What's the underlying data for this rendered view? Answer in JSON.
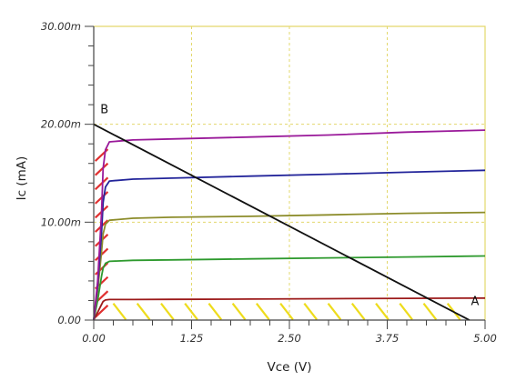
{
  "chart_data": {
    "type": "line",
    "title": "",
    "xlabel": "Vce (V)",
    "ylabel": "Ic (mA)",
    "xlim": [
      0,
      5
    ],
    "ylim": [
      0,
      30
    ],
    "x_ticks": [
      "0.00",
      "1.25",
      "2.50",
      "3.75",
      "5.00"
    ],
    "y_ticks": [
      "0.00",
      "10.00m",
      "20.00m",
      "30.00m"
    ],
    "grid": true,
    "colors": {
      "frame": "#e3d86c",
      "grid": "#e3d86c",
      "load_line": "#111111",
      "saturation_hatch": "#e03030",
      "cutoff_hatch": "#eedc1c",
      "axis": "#444444"
    },
    "series": [
      {
        "color": "#9c1a1a",
        "x": [
          0,
          0.05,
          0.1,
          0.12,
          0.15,
          0.2,
          0.5,
          1,
          2,
          3,
          4,
          5
        ],
        "y": [
          0,
          0.8,
          1.6,
          1.9,
          2.05,
          2.1,
          2.1,
          2.12,
          2.15,
          2.18,
          2.22,
          2.25
        ]
      },
      {
        "color": "#2e9a2e",
        "x": [
          0,
          0.05,
          0.1,
          0.12,
          0.15,
          0.2,
          0.5,
          1,
          2,
          3,
          4,
          5
        ],
        "y": [
          0,
          2,
          4.5,
          5.3,
          5.8,
          6.0,
          6.1,
          6.15,
          6.25,
          6.35,
          6.45,
          6.55
        ]
      },
      {
        "color": "#8c8c2a",
        "x": [
          0,
          0.05,
          0.1,
          0.12,
          0.15,
          0.2,
          0.5,
          1,
          2,
          3,
          4,
          5
        ],
        "y": [
          0,
          3,
          7,
          8.8,
          9.8,
          10.2,
          10.4,
          10.5,
          10.6,
          10.75,
          10.9,
          11.0
        ]
      },
      {
        "color": "#22249a",
        "x": [
          0,
          0.05,
          0.1,
          0.12,
          0.15,
          0.2,
          0.5,
          1,
          2,
          3,
          4,
          5
        ],
        "y": [
          0,
          3.5,
          9,
          12,
          13.6,
          14.2,
          14.4,
          14.5,
          14.7,
          14.9,
          15.1,
          15.3
        ]
      },
      {
        "color": "#9a1a9a",
        "x": [
          0,
          0.05,
          0.1,
          0.12,
          0.15,
          0.2,
          0.5,
          1,
          2,
          3,
          4,
          5
        ],
        "y": [
          0,
          4,
          11,
          15.5,
          17.4,
          18.2,
          18.4,
          18.5,
          18.7,
          18.9,
          19.2,
          19.4
        ]
      }
    ],
    "load_line": {
      "x": [
        0,
        4.8
      ],
      "y": [
        20,
        0
      ]
    },
    "annotations": [
      {
        "text": "B",
        "x": 0.05,
        "y": 21.5
      },
      {
        "text": "A",
        "x": 4.82,
        "y": 1.9
      }
    ]
  }
}
